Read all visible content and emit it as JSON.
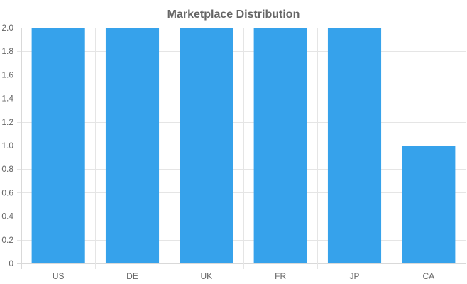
{
  "chart_data": {
    "type": "bar",
    "title": "Marketplace Distribution",
    "categories": [
      "US",
      "DE",
      "UK",
      "FR",
      "JP",
      "CA"
    ],
    "values": [
      2,
      2,
      2,
      2,
      2,
      1
    ],
    "ylim": [
      0,
      2
    ],
    "yticks": [
      0,
      0.2,
      0.4,
      0.6,
      0.8,
      1.0,
      1.2,
      1.4,
      1.6,
      1.8,
      2.0
    ],
    "ytick_labels": [
      "0",
      "0.2",
      "0.4",
      "0.6",
      "0.8",
      "1.0",
      "1.2",
      "1.4",
      "1.6",
      "1.8",
      "2.0"
    ],
    "xlabel": "",
    "ylabel": "",
    "grid": true,
    "legend": "none",
    "bar_color": "#36a2eb"
  }
}
